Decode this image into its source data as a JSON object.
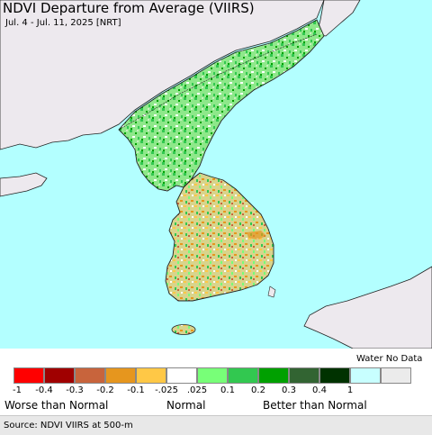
{
  "map": {
    "title": "NDVI Departure from Average (VIIRS)",
    "subtitle": "Jul. 4 - Jul. 11, 2025 [NRT]",
    "colors": {
      "water": "#b3ffff",
      "land_bg": "#ede9ee",
      "boundary": "#222222"
    }
  },
  "legend": {
    "no_data_label": "Water No Data",
    "swatches": [
      {
        "color": "#ff0000"
      },
      {
        "color": "#a00000"
      },
      {
        "color": "#c8643c"
      },
      {
        "color": "#e6961e"
      },
      {
        "color": "#ffc846"
      },
      {
        "color": "#ffffff"
      },
      {
        "color": "#78ff78"
      },
      {
        "color": "#32c850"
      },
      {
        "color": "#00a000"
      },
      {
        "color": "#326432"
      },
      {
        "color": "#003200"
      },
      {
        "color": "#c8ffff"
      },
      {
        "color": "#ebebeb"
      }
    ],
    "ticks": [
      "-1",
      "-0.4",
      "-0.3",
      "-0.2",
      "-0.1",
      "-.025",
      ".025",
      "0.1",
      "0.2",
      "0.3",
      "0.4",
      "1"
    ],
    "categories": {
      "worse": "Worse than Normal",
      "normal": "Normal",
      "better": "Better than Normal"
    }
  },
  "footer": {
    "source": "Source: NDVI VIIRS at 500-m"
  }
}
